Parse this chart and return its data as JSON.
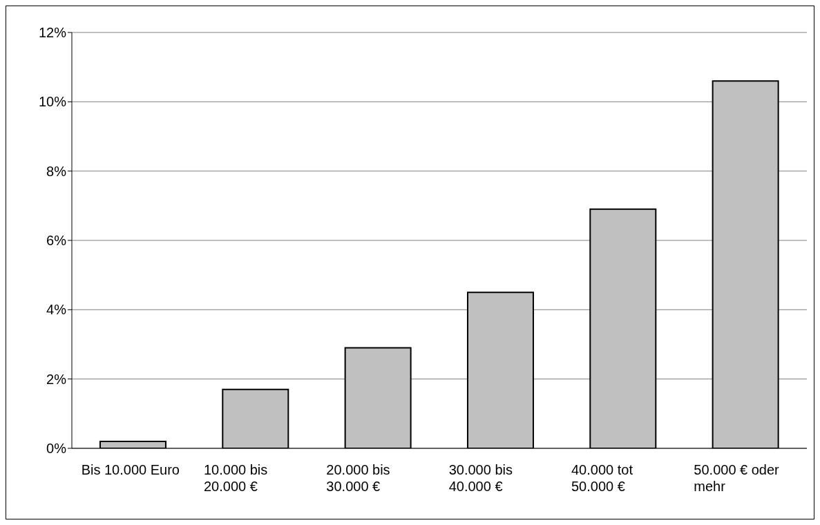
{
  "chart_data": {
    "type": "bar",
    "categories": [
      "Bis 10.000 Euro",
      "10.000 bis 20.000 €",
      "20.000 bis 30.000 €",
      "30.000 bis 40.000 €",
      "40.000 tot 50.000 €",
      "50.000 € oder mehr"
    ],
    "values": [
      0.2,
      1.7,
      2.9,
      4.5,
      6.9,
      10.6
    ],
    "color": "#c0c0c0",
    "ylim": [
      0,
      12
    ],
    "yticks": [
      {
        "value": 0,
        "label": "0%"
      },
      {
        "value": 2,
        "label": "2%"
      },
      {
        "value": 4,
        "label": "4%"
      },
      {
        "value": 6,
        "label": "6%"
      },
      {
        "value": 8,
        "label": "8%"
      },
      {
        "value": 10,
        "label": "10%"
      },
      {
        "value": 12,
        "label": "12%"
      }
    ],
    "grid": "y"
  }
}
